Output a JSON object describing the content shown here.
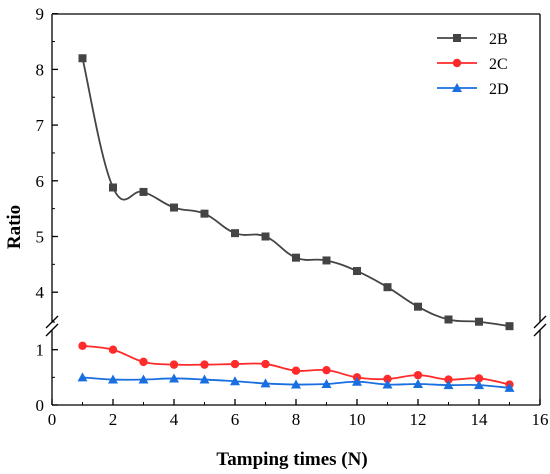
{
  "chart_data": {
    "type": "line",
    "xlabel": "Tamping times (N)",
    "ylabel": "Ratio",
    "xlim": [
      0,
      16
    ],
    "x_ticks": [
      "0",
      "2",
      "4",
      "6",
      "8",
      "10",
      "12",
      "14",
      "16"
    ],
    "y_ticks_upper": [
      "4",
      "5",
      "6",
      "7",
      "8",
      "9"
    ],
    "y_ticks_lower": [
      "0",
      "1"
    ],
    "y_axis_break": {
      "lower_range": [
        0,
        1.2
      ],
      "upper_range": [
        3.2,
        9
      ]
    },
    "legend_position": "top-right",
    "x": [
      1,
      2,
      3,
      4,
      5,
      6,
      7,
      8,
      9,
      10,
      11,
      12,
      13,
      14,
      15
    ],
    "series": [
      {
        "name": "2B",
        "color": "#444444",
        "marker": "square",
        "values": [
          8.2,
          5.88,
          5.8,
          5.52,
          5.41,
          5.06,
          5.0,
          4.62,
          4.57,
          4.38,
          4.09,
          3.74,
          3.51,
          3.47,
          3.39
        ]
      },
      {
        "name": "2C",
        "color": "#ff2a2a",
        "marker": "circle",
        "values": [
          1.07,
          1.0,
          0.78,
          0.73,
          0.73,
          0.74,
          0.74,
          0.62,
          0.63,
          0.5,
          0.47,
          0.54,
          0.46,
          0.48,
          0.37
        ]
      },
      {
        "name": "2D",
        "color": "#1a6fe0",
        "marker": "triangle",
        "values": [
          0.5,
          0.46,
          0.46,
          0.48,
          0.46,
          0.43,
          0.39,
          0.37,
          0.38,
          0.42,
          0.37,
          0.38,
          0.36,
          0.36,
          0.31
        ]
      }
    ]
  }
}
